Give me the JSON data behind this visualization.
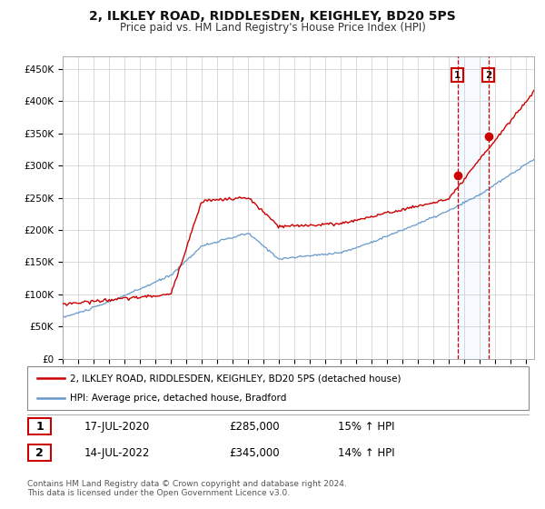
{
  "title": "2, ILKLEY ROAD, RIDDLESDEN, KEIGHLEY, BD20 5PS",
  "subtitle": "Price paid vs. HM Land Registry's House Price Index (HPI)",
  "ylabel_ticks": [
    "£0",
    "£50K",
    "£100K",
    "£150K",
    "£200K",
    "£250K",
    "£300K",
    "£350K",
    "£400K",
    "£450K"
  ],
  "ytick_values": [
    0,
    50000,
    100000,
    150000,
    200000,
    250000,
    300000,
    350000,
    400000,
    450000
  ],
  "ylim": [
    0,
    470000
  ],
  "xlim_start": 1995.0,
  "xlim_end": 2025.5,
  "legend_line1": "2, ILKLEY ROAD, RIDDLESDEN, KEIGHLEY, BD20 5PS (detached house)",
  "legend_line2": "HPI: Average price, detached house, Bradford",
  "sale1_label": "1",
  "sale1_date": "17-JUL-2020",
  "sale1_price": "£285,000",
  "sale1_hpi": "15% ↑ HPI",
  "sale1_year": 2020.54,
  "sale1_value": 285000,
  "sale2_label": "2",
  "sale2_date": "14-JUL-2022",
  "sale2_price": "£345,000",
  "sale2_hpi": "14% ↑ HPI",
  "sale2_year": 2022.54,
  "sale2_value": 345000,
  "red_color": "#cc0000",
  "blue_color": "#6699cc",
  "footer": "Contains HM Land Registry data © Crown copyright and database right 2024.\nThis data is licensed under the Open Government Licence v3.0.",
  "background_color": "#ffffff",
  "grid_color": "#cccccc"
}
